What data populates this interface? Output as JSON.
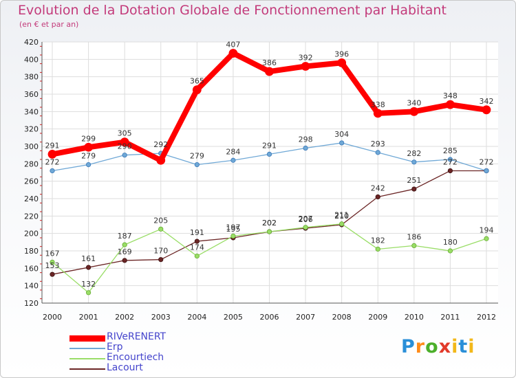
{
  "chart_data": {
    "type": "line",
    "title": "Evolution de la Dotation Globale de Fonctionnement par Habitant",
    "subtitle": "(en € et par an)",
    "x": [
      "2000",
      "2001",
      "2002",
      "2003",
      "2004",
      "2005",
      "2006",
      "2007",
      "2008",
      "2009",
      "2010",
      "2011",
      "2012"
    ],
    "ylim": [
      120,
      420
    ],
    "yticks": [
      120,
      140,
      160,
      180,
      200,
      220,
      240,
      260,
      280,
      300,
      320,
      340,
      360,
      380,
      400,
      420
    ],
    "grid": true,
    "legend_placement": "bottom-left",
    "series": [
      {
        "name": "RIVeRENERT",
        "color": "#ff0000",
        "values": [
          291,
          299,
          305,
          284,
          365,
          407,
          386,
          392,
          396,
          338,
          340,
          348,
          342
        ]
      },
      {
        "name": "Erp",
        "color": "#6fa8d6",
        "values": [
          272,
          279,
          290,
          292,
          279,
          284,
          291,
          298,
          304,
          293,
          282,
          285,
          272
        ]
      },
      {
        "name": "Encourtiech",
        "color": "#99dd66",
        "values": [
          167,
          132,
          187,
          205,
          174,
          197,
          202,
          207,
          211,
          182,
          186,
          180,
          194
        ]
      },
      {
        "name": "Lacourt",
        "color": "#6b2525",
        "values": [
          153,
          161,
          169,
          170,
          191,
          195,
          202,
          206,
          210,
          242,
          251,
          272,
          272
        ]
      }
    ],
    "data_labels": [
      [
        "291",
        "299",
        "305",
        "",
        "365",
        "407",
        "386",
        "392",
        "396",
        "338",
        "340",
        "348",
        "342"
      ],
      [
        "272",
        "279",
        "290",
        "292",
        "279",
        "284",
        "291",
        "298",
        "304",
        "293",
        "282",
        "285",
        ""
      ],
      [
        "167",
        "132",
        "187",
        "205",
        "174",
        "197",
        "202",
        "207",
        "211",
        "182",
        "186",
        "180",
        "194"
      ],
      [
        "153",
        "161",
        "169",
        "170",
        "191",
        "195",
        "202",
        "206",
        "210",
        "242",
        "251",
        "272",
        "272"
      ]
    ]
  },
  "logo": {
    "p": "P",
    "r": "r",
    "o": "o",
    "x": "x",
    "i": "i",
    "t": "t",
    "i2": "i"
  }
}
